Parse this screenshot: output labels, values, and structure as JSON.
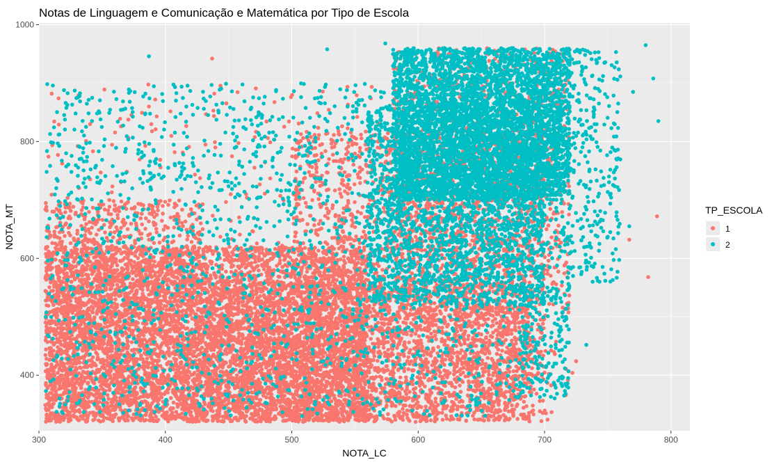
{
  "chart_data": {
    "type": "scatter",
    "title": "Notas de Linguagem e Comunicação e Matemática por Tipo de Escola",
    "xlabel": "NOTA_LC",
    "ylabel": "NOTA_MT",
    "xlim": [
      300,
      815
    ],
    "ylim": [
      305,
      1003
    ],
    "x_ticks": [
      300,
      400,
      500,
      600,
      700,
      800
    ],
    "y_ticks": [
      400,
      600,
      800,
      1000
    ],
    "grid": true,
    "legend": {
      "title": "TP_ESCOLA",
      "position": "right",
      "entries": [
        "1",
        "2"
      ]
    },
    "series": [
      {
        "name": "1",
        "color": "#F8766D",
        "clusters": [
          {
            "x": [
              305,
              560
            ],
            "y": [
              320,
              620
            ],
            "count": 5500
          },
          {
            "x": [
              305,
              430
            ],
            "y": [
              320,
              700
            ],
            "count": 1400
          },
          {
            "x": [
              430,
              690
            ],
            "y": [
              320,
              560
            ],
            "count": 2500
          },
          {
            "x": [
              500,
              700
            ],
            "y": [
              320,
              820
            ],
            "count": 2200
          },
          {
            "x": [
              580,
              720
            ],
            "y": [
              500,
              960
            ],
            "count": 1100
          },
          {
            "x": [
              305,
              720
            ],
            "y": [
              320,
              900
            ],
            "count": 500
          }
        ],
        "points": [
          {
            "x": 437,
            "y": 942
          },
          {
            "x": 789,
            "y": 672
          },
          {
            "x": 782,
            "y": 568
          },
          {
            "x": 722,
            "y": 404
          },
          {
            "x": 725,
            "y": 424
          },
          {
            "x": 767,
            "y": 632
          },
          {
            "x": 392,
            "y": 872
          },
          {
            "x": 387,
            "y": 860
          },
          {
            "x": 315,
            "y": 777
          },
          {
            "x": 310,
            "y": 709
          },
          {
            "x": 365,
            "y": 826
          }
        ]
      },
      {
        "name": "2",
        "color": "#00BFC4",
        "clusters": [
          {
            "x": [
              580,
              720
            ],
            "y": [
              700,
              960
            ],
            "count": 3600
          },
          {
            "x": [
              560,
              700
            ],
            "y": [
              520,
              860
            ],
            "count": 2000
          },
          {
            "x": [
              620,
              760
            ],
            "y": [
              560,
              960
            ],
            "count": 900
          },
          {
            "x": [
              305,
              690
            ],
            "y": [
              330,
              900
            ],
            "count": 1800
          },
          {
            "x": [
              680,
              720
            ],
            "y": [
              360,
              560
            ],
            "count": 200
          }
        ],
        "points": [
          {
            "x": 387,
            "y": 946
          },
          {
            "x": 780,
            "y": 965
          },
          {
            "x": 790,
            "y": 835
          },
          {
            "x": 767,
            "y": 655
          },
          {
            "x": 738,
            "y": 560
          },
          {
            "x": 733,
            "y": 452
          },
          {
            "x": 329,
            "y": 848
          },
          {
            "x": 310,
            "y": 598
          },
          {
            "x": 307,
            "y": 596
          },
          {
            "x": 342,
            "y": 835
          },
          {
            "x": 335,
            "y": 781
          },
          {
            "x": 528,
            "y": 958
          },
          {
            "x": 574,
            "y": 968
          },
          {
            "x": 786,
            "y": 908
          },
          {
            "x": 770,
            "y": 885
          }
        ]
      }
    ]
  }
}
